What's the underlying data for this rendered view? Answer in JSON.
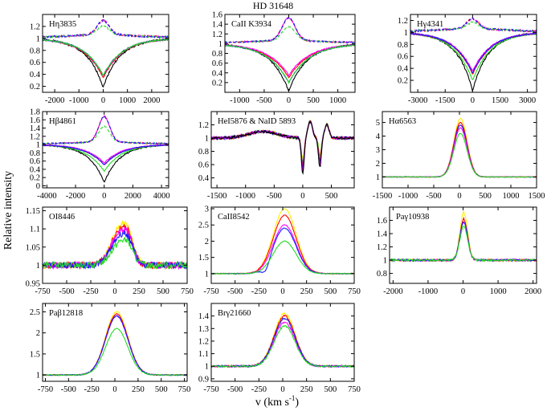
{
  "figure": {
    "title": "HD 31648",
    "xlabel": "v (km s",
    "xlabel_sup": "-1",
    "xlabel_close": ")",
    "ylabel": "Relative intensity"
  },
  "colors": {
    "black": "#000000",
    "red": "#ff0000",
    "green": "#22dd22",
    "blue": "#1a1aff",
    "magenta": "#ff00ff",
    "yellow": "#ffee00",
    "orange": "#ffa500"
  },
  "chart_data": [
    {
      "id": "hn3835",
      "type": "line",
      "title": "Hη3835",
      "xlim": [
        -2500,
        2700
      ],
      "ylim": [
        0.1,
        1.4
      ],
      "xticks": [
        -2000,
        -1000,
        0,
        1000,
        2000
      ],
      "xtick_labels": [
        "-2000",
        "-1000",
        "0",
        "1000",
        "2000"
      ],
      "yticks": [
        0.2,
        0.4,
        0.6,
        0.8,
        1.0,
        1.2
      ],
      "ytick_labels": [
        "0.2",
        "0.4",
        "0.6",
        "0.8",
        "1",
        "1.2"
      ],
      "kind": "absorption",
      "center": 0,
      "width": 700,
      "absorption_minima": {
        "black": 0.26,
        "red": 0.34,
        "magenta": 0.37,
        "blue": 0.38,
        "green": 0.38
      },
      "emission_dashed_peak": 1.22
    },
    {
      "id": "caii3934",
      "type": "line",
      "title": "CaII K3934",
      "xlim": [
        -1300,
        1350
      ],
      "ylim": [
        0,
        1.6
      ],
      "xticks": [
        -1000,
        -500,
        0,
        500,
        1000
      ],
      "xtick_labels": [
        "-1000",
        "-500",
        "0",
        "500",
        "1000"
      ],
      "yticks": [
        0.2,
        0.4,
        0.6,
        0.8,
        1.0,
        1.2,
        1.4,
        1.6
      ],
      "ytick_labels": [
        "0.2",
        "0.4",
        "0.6",
        "0.8",
        "1",
        "1.2",
        "1.4",
        "1.6"
      ],
      "kind": "absorption",
      "center": 0,
      "width": 380,
      "absorption_minima": {
        "black": 0.1,
        "red": 0.3,
        "magenta": 0.35,
        "blue": 0.2,
        "green": 0.2
      },
      "emission_dashed_peak": 1.45
    },
    {
      "id": "hg4341",
      "type": "line",
      "title": "Hγ4341",
      "xlim": [
        -3400,
        3500
      ],
      "ylim": [
        0,
        1.3
      ],
      "xticks": [
        -3000,
        -1500,
        0,
        1500,
        3000
      ],
      "xtick_labels": [
        "-3000",
        "-1500",
        "0",
        "1500",
        "3000"
      ],
      "yticks": [
        0.2,
        0.4,
        0.6,
        0.8,
        1.0,
        1.2
      ],
      "ytick_labels": [
        "0.2",
        "0.4",
        "0.6",
        "0.8",
        "1",
        "1.2"
      ],
      "kind": "absorption",
      "center": 0,
      "width": 900,
      "absorption_minima": {
        "black": 0.1,
        "green": 0.2,
        "red": 0.3,
        "magenta": 0.35,
        "blue": 0.32
      },
      "emission_dashed_peak": 1.15
    },
    {
      "id": "hb4861",
      "type": "line",
      "title": "Hβ4861",
      "xlim": [
        -4300,
        4500
      ],
      "ylim": [
        -0.05,
        1.8
      ],
      "xticks": [
        -4000,
        -2000,
        0,
        2000,
        4000
      ],
      "xtick_labels": [
        "-4000",
        "-2000",
        "0",
        "2000",
        "4000"
      ],
      "yticks": [
        0,
        0.2,
        0.4,
        0.6,
        0.8,
        1.0,
        1.2,
        1.4,
        1.6,
        1.8
      ],
      "ytick_labels": [
        "0",
        "0.2",
        "0.4",
        "0.6",
        "0.8",
        "1",
        "1.2",
        "1.4",
        "1.6",
        "1.8"
      ],
      "kind": "absorption",
      "center": 0,
      "width": 1100,
      "absorption_minima": {
        "black": 0.15,
        "green": 0.35,
        "red": 0.5,
        "magenta": 0.55,
        "blue": 0.5
      },
      "emission_dashed_peak": 1.6
    },
    {
      "id": "hei5876",
      "type": "line",
      "title": "HeI5876 & NaID 5893",
      "xlim": [
        -1600,
        900
      ],
      "ylim": [
        0.25,
        1.4
      ],
      "xticks": [
        -1500,
        -1000,
        -500,
        0,
        500
      ],
      "xtick_labels": [
        "-1500",
        "-1000",
        "-500",
        "0",
        "500"
      ],
      "yticks": [
        0.4,
        0.6,
        0.8,
        1.0,
        1.2
      ],
      "ytick_labels": [
        "0.4",
        "0.6",
        "0.8",
        "1",
        "1.2"
      ],
      "kind": "hei_nad"
    },
    {
      "id": "ha6563",
      "type": "line",
      "title": "Hα6563",
      "xlim": [
        -1500,
        1500
      ],
      "ylim": [
        0.2,
        5.8
      ],
      "xticks": [
        -1500,
        -1000,
        -500,
        0,
        500,
        1000,
        1500
      ],
      "xtick_labels": [
        "-1500",
        "-1000",
        "-500",
        "0",
        "500",
        "1000",
        "1500"
      ],
      "yticks": [
        1,
        2,
        3,
        4,
        5
      ],
      "ytick_labels": [
        "1",
        "2",
        "3",
        "4",
        "5"
      ],
      "kind": "emission",
      "center": 0,
      "width": 130,
      "peaks": {
        "yellow": 5.3,
        "red": 5.0,
        "blue": 4.8,
        "magenta": 4.6,
        "green": 4.2
      }
    },
    {
      "id": "oi8446",
      "type": "line",
      "title": "OI8446",
      "xlim": [
        -750,
        750
      ],
      "ylim": [
        0.95,
        1.16
      ],
      "xticks": [
        -750,
        -500,
        -250,
        0,
        250,
        500,
        750
      ],
      "xtick_labels": [
        "-750",
        "-500",
        "-250",
        "0",
        "250",
        "500",
        "750"
      ],
      "yticks": [
        0.95,
        1.0,
        1.05,
        1.1,
        1.15
      ],
      "ytick_labels": [
        "0.95",
        "1",
        "1.05",
        "1.1",
        "1.15"
      ],
      "kind": "emission_double",
      "peaks": {
        "yellow": 1.13,
        "red": 1.12,
        "magenta": 1.11,
        "blue": 1.1,
        "green": 1.08
      }
    },
    {
      "id": "caii8542",
      "type": "line",
      "title": "CaII8542",
      "xlim": [
        -750,
        750
      ],
      "ylim": [
        0.7,
        3.05
      ],
      "xticks": [
        -750,
        -500,
        -250,
        0,
        250,
        500,
        750
      ],
      "xtick_labels": [
        "-750",
        "-500",
        "-250",
        "0",
        "250",
        "500",
        "750"
      ],
      "yticks": [
        1,
        1.5,
        2,
        2.5,
        3
      ],
      "ytick_labels": [
        "1",
        "1.5",
        "2",
        "2.5",
        "3"
      ],
      "kind": "emission",
      "center": 0,
      "width": 120,
      "peaks": {
        "yellow": 3.0,
        "red": 2.8,
        "magenta": 2.5,
        "blue": 2.4,
        "green": 2.0
      }
    },
    {
      "id": "pag10938",
      "type": "line",
      "title": "Paγ10938",
      "xlim": [
        -2100,
        2100
      ],
      "ylim": [
        0.65,
        1.8
      ],
      "xticks": [
        -2000,
        -1000,
        0,
        1000,
        2000
      ],
      "xtick_labels": [
        "-2000",
        "-1000",
        "0",
        "1000",
        "2000"
      ],
      "yticks": [
        0.8,
        1.0,
        1.2,
        1.4,
        1.6
      ],
      "ytick_labels": [
        "0.8",
        "1",
        "1.2",
        "1.4",
        "1.6"
      ],
      "kind": "emission",
      "center": 0,
      "width": 110,
      "peaks": {
        "yellow": 1.72,
        "red": 1.62,
        "magenta": 1.58,
        "blue": 1.58,
        "green": 1.52
      }
    },
    {
      "id": "pab12818",
      "type": "line",
      "title": "Paβ12818",
      "xlim": [
        -780,
        780
      ],
      "ylim": [
        0.85,
        2.7
      ],
      "xticks": [
        -750,
        -500,
        -250,
        0,
        250,
        500,
        750
      ],
      "xtick_labels": [
        "-750",
        "-500",
        "-250",
        "0",
        "250",
        "500",
        "750"
      ],
      "yticks": [
        1,
        1.5,
        2,
        2.5
      ],
      "ytick_labels": [
        "1",
        "1.5",
        "2",
        "2.5"
      ],
      "kind": "emission",
      "center": 0,
      "width": 120,
      "peaks": {
        "yellow": 2.5,
        "red": 2.45,
        "magenta": 2.4,
        "blue": 2.4,
        "green": 2.1
      }
    },
    {
      "id": "brg21660",
      "type": "line",
      "title": "Brγ21660",
      "xlim": [
        -750,
        750
      ],
      "ylim": [
        0.88,
        1.5
      ],
      "xticks": [
        -750,
        -500,
        -250,
        0,
        250,
        500,
        750
      ],
      "xtick_labels": [
        "-750",
        "-500",
        "-250",
        "0",
        "250",
        "500",
        "750"
      ],
      "yticks": [
        0.9,
        1.0,
        1.1,
        1.2,
        1.3,
        1.4
      ],
      "ytick_labels": [
        "0.9",
        "1",
        "1.1",
        "1.2",
        "1.3",
        "1.4"
      ],
      "kind": "emission",
      "center": 0,
      "width": 110,
      "peaks": {
        "yellow": 1.42,
        "red": 1.4,
        "magenta": 1.35,
        "blue": 1.38,
        "green": 1.32
      }
    }
  ]
}
